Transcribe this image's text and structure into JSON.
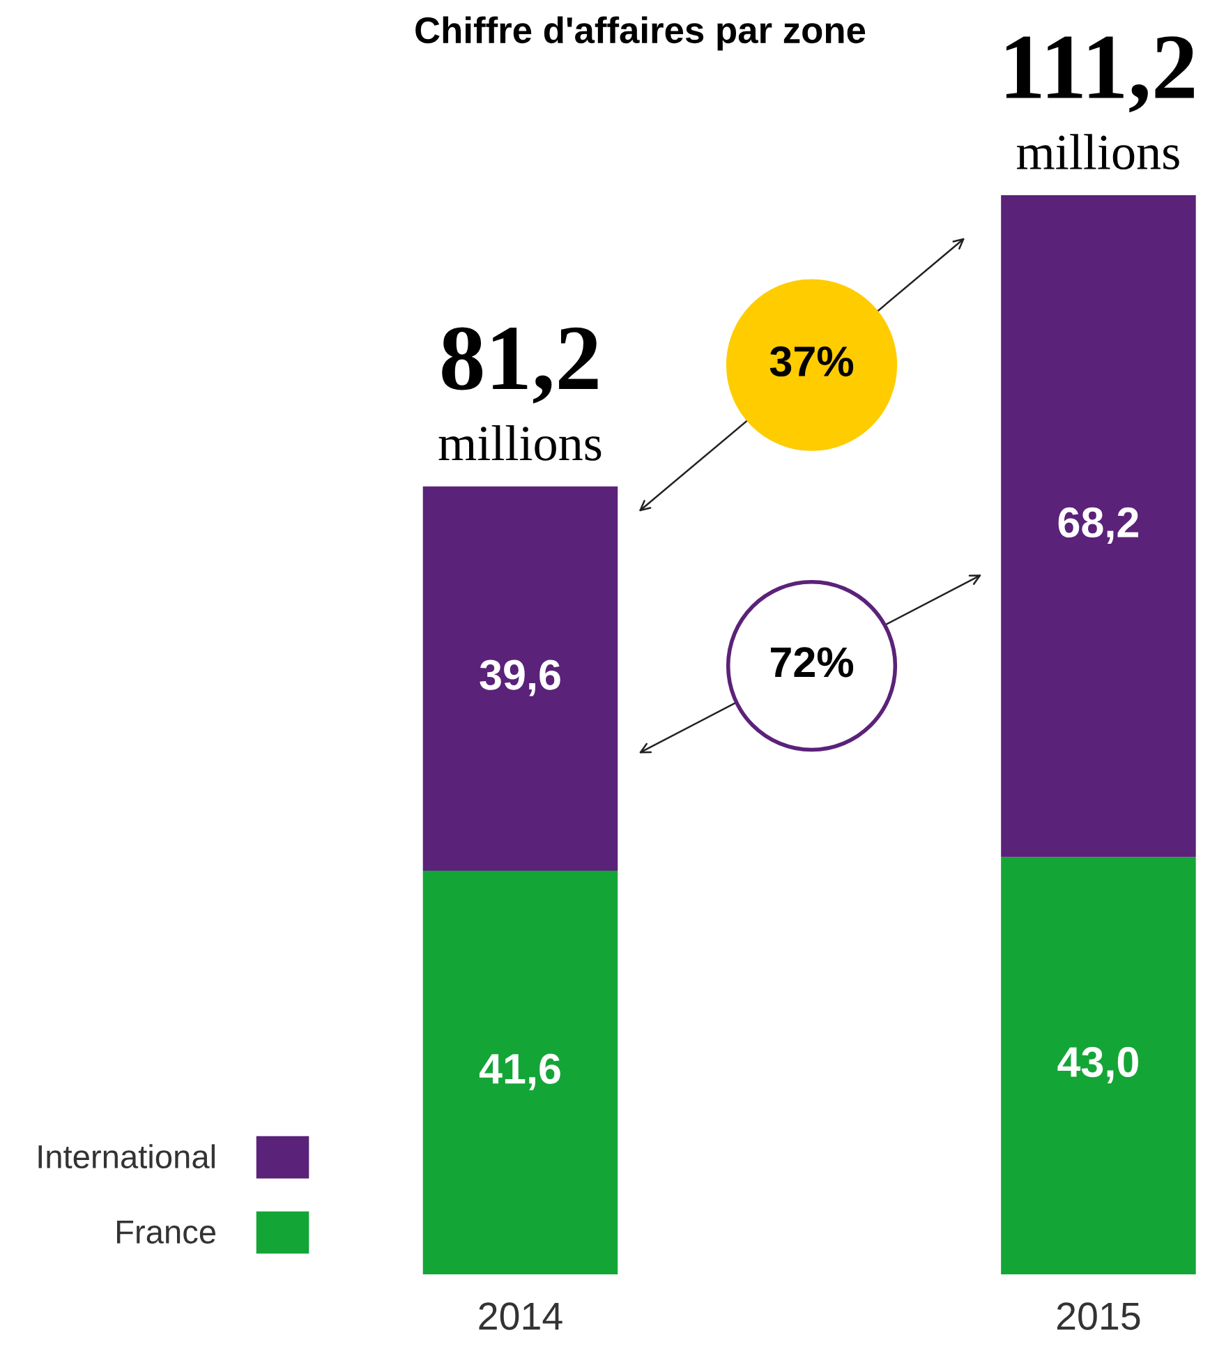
{
  "chart_data": {
    "type": "bar",
    "stacked": true,
    "title": "Chiffre d'affaires par zone",
    "categories": [
      "2014",
      "2015"
    ],
    "series": [
      {
        "name": "France",
        "color": "#14a537",
        "values": [
          41.6,
          43.0
        ],
        "value_labels": [
          "41,6",
          "43,0"
        ]
      },
      {
        "name": "International",
        "color": "#5b2279",
        "values": [
          39.6,
          68.2
        ],
        "value_labels": [
          "39,6",
          "68,2"
        ]
      }
    ],
    "totals": [
      "81,2",
      "111,2"
    ],
    "annotations": [
      "37%",
      "72%",
      {
        "text": "millions",
        "x": "2014",
        "y": 81.2
      },
      {
        "text": "millions",
        "x": "2015",
        "y": 111.2
      }
    ],
    "legend": "bottom left"
  }
}
